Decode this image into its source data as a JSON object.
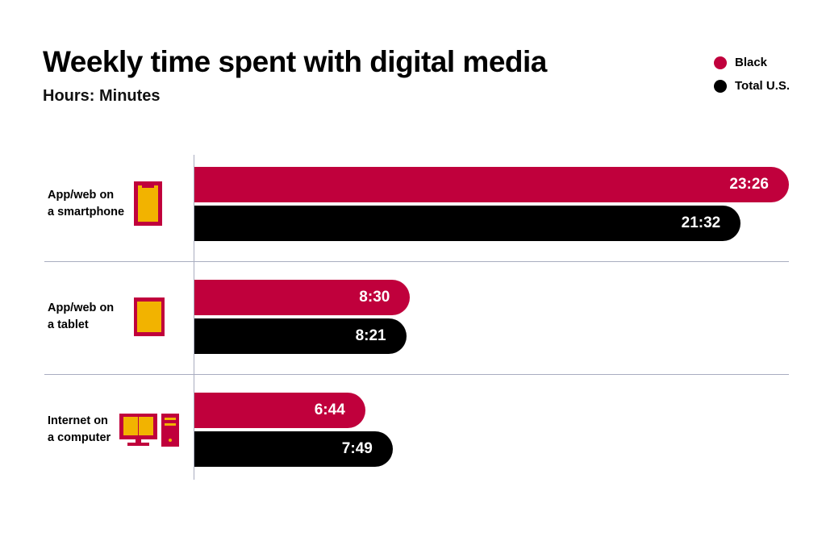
{
  "chart_data": {
    "type": "bar",
    "orientation": "horizontal",
    "title": "Weekly time spent with digital media",
    "subtitle": "Hours: Minutes",
    "categories": [
      "App/web on a smartphone",
      "App/web on a tablet",
      "Internet on a computer"
    ],
    "category_lines": [
      [
        "App/web on",
        "a smartphone"
      ],
      [
        "App/web on",
        "a tablet"
      ],
      [
        "Internet on",
        "a computer"
      ]
    ],
    "category_icons": [
      "smartphone-icon",
      "tablet-icon",
      "desktop-computer-icon"
    ],
    "unit": "minutes",
    "series": [
      {
        "name": "Black",
        "color": "#c0003c",
        "values": [
          1406,
          510,
          404
        ],
        "labels": [
          "23:26",
          "8:30",
          "6:44"
        ]
      },
      {
        "name": "Total U.S.",
        "color": "#000000",
        "values": [
          1292,
          501,
          469
        ],
        "labels": [
          "21:32",
          "8:21",
          "7:49"
        ]
      }
    ],
    "legend_position": "top-right",
    "xlim": [
      0,
      1406
    ],
    "grid": false,
    "icon_fill": "#f2b300"
  }
}
